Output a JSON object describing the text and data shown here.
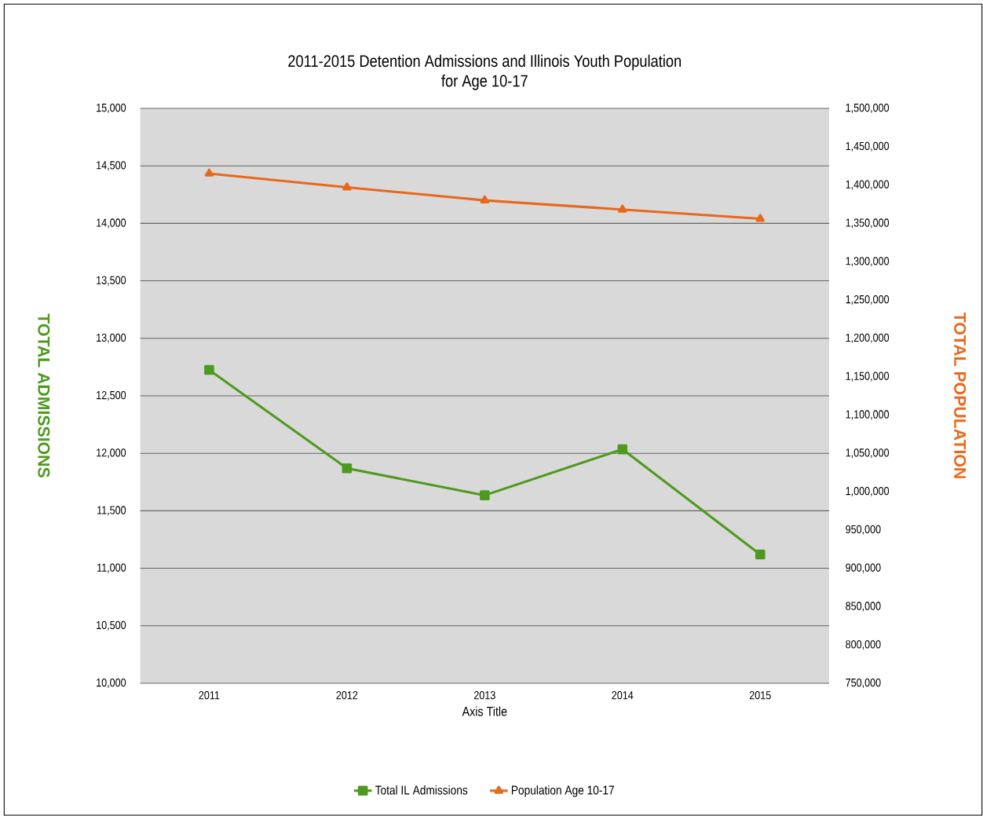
{
  "chart_data": {
    "type": "line",
    "title": "2011-2015 Detention Admissions and Illinois Youth Population\nfor Age 10-17",
    "categories": [
      "2011",
      "2012",
      "2013",
      "2014",
      "2015"
    ],
    "xlabel": "Axis Title",
    "ylabel": "TOTAL ADMISSIONS",
    "y2label": "TOTAL POPULATION",
    "series": [
      {
        "name": "Total IL Admissions",
        "color": "#4e9a1e",
        "marker": "square",
        "values": [
          12725,
          11870,
          11635,
          12035,
          11120
        ]
      },
      {
        "name": "Population Age 10-17",
        "color": "#e8681c",
        "marker": "triangle",
        "axis": "y2",
        "values": [
          1415000,
          1397000,
          1380000,
          1368000,
          1356000
        ]
      }
    ],
    "ylim": [
      10000,
      15000
    ],
    "yticks": [
      {
        "value": 10000,
        "label": "10,000"
      },
      {
        "value": 10500,
        "label": "10,500"
      },
      {
        "value": 11000,
        "label": "11,000"
      },
      {
        "value": 11500,
        "label": "11,500"
      },
      {
        "value": 12000,
        "label": "12,000"
      },
      {
        "value": 12500,
        "label": "12,500"
      },
      {
        "value": 13000,
        "label": "13,000"
      },
      {
        "value": 13500,
        "label": "13,500"
      },
      {
        "value": 14000,
        "label": "14,000"
      },
      {
        "value": 14500,
        "label": "14,500"
      },
      {
        "value": 15000,
        "label": "15,000"
      }
    ],
    "y2lim": [
      750000,
      1500000
    ],
    "y2ticks": [
      {
        "value": 750000,
        "label": "750,000"
      },
      {
        "value": 800000,
        "label": "800,000"
      },
      {
        "value": 850000,
        "label": "850,000"
      },
      {
        "value": 900000,
        "label": "900,000"
      },
      {
        "value": 950000,
        "label": "950,000"
      },
      {
        "value": 1000000,
        "label": "1,000,000"
      },
      {
        "value": 1050000,
        "label": "1,050,000"
      },
      {
        "value": 1100000,
        "label": "1,100,000"
      },
      {
        "value": 1150000,
        "label": "1,150,000"
      },
      {
        "value": 1200000,
        "label": "1,200,000"
      },
      {
        "value": 1250000,
        "label": "1,250,000"
      },
      {
        "value": 1300000,
        "label": "1,300,000"
      },
      {
        "value": 1350000,
        "label": "1,350,000"
      },
      {
        "value": 1400000,
        "label": "1,400,000"
      },
      {
        "value": 1450000,
        "label": "1,450,000"
      },
      {
        "value": 1500000,
        "label": "1,500,000"
      }
    ],
    "grid": "y",
    "legend": "bottom",
    "line_style": "solid"
  }
}
